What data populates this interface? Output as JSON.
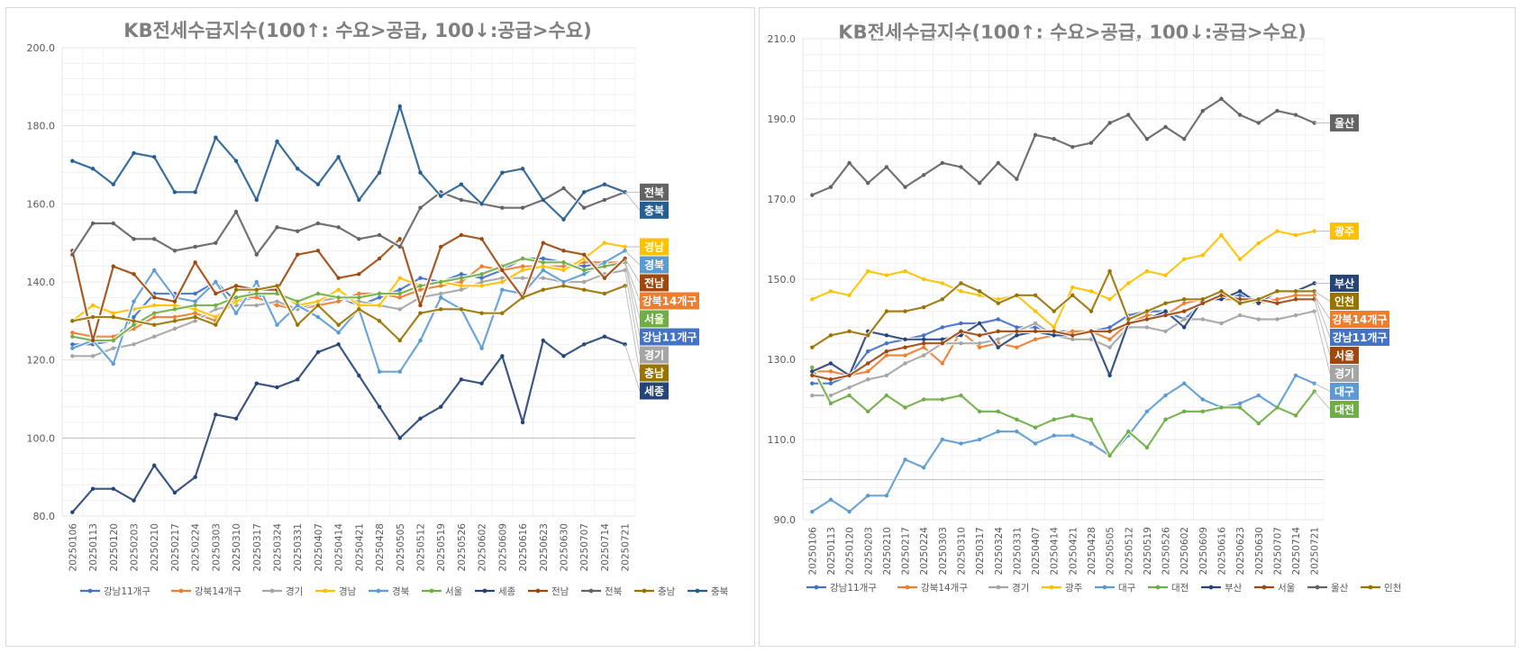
{
  "chart_data": [
    {
      "type": "line",
      "title": "KB전세수급지수(100↑: 수요>공급, 100↓:공급>수요)",
      "xlabel": "",
      "ylabel": "",
      "ylim": [
        80,
        200
      ],
      "yticks": [
        "80.0",
        "100.0",
        "120.0",
        "140.0",
        "160.0",
        "180.0",
        "200.0"
      ],
      "grid": true,
      "legend_position": "bottom",
      "x": [
        "20250106",
        "20250113",
        "20250120",
        "20250203",
        "20250210",
        "20250217",
        "20250224",
        "20250303",
        "20250310",
        "20250317",
        "20250324",
        "20250331",
        "20250407",
        "20250414",
        "20250421",
        "20250428",
        "20250505",
        "20250512",
        "20250519",
        "20250526",
        "20250602",
        "20250609",
        "20250616",
        "20250623",
        "20250630",
        "20250707",
        "20250714",
        "20250721"
      ],
      "series": [
        {
          "name": "강남11개구",
          "color": "#4472c4",
          "values": [
            124,
            124,
            125,
            131,
            137,
            137,
            137,
            140,
            135,
            136,
            138,
            134,
            134,
            136,
            134,
            136,
            138,
            141,
            140,
            142,
            141,
            143,
            146,
            146,
            145,
            144,
            145,
            145
          ]
        },
        {
          "name": "강북14개구",
          "color": "#ed7d31",
          "values": [
            127,
            126,
            126,
            128,
            131,
            131,
            132,
            130,
            136,
            136,
            134,
            133,
            134,
            135,
            137,
            137,
            136,
            138,
            139,
            140,
            144,
            143,
            144,
            144,
            144,
            145,
            145,
            145
          ]
        },
        {
          "name": "경기",
          "color": "#a5a5a5",
          "values": [
            121,
            121,
            123,
            124,
            126,
            128,
            130,
            133,
            134,
            134,
            135,
            133,
            135,
            136,
            135,
            134,
            133,
            136,
            137,
            138,
            140,
            141,
            141,
            141,
            140,
            140,
            142,
            143
          ]
        },
        {
          "name": "경남",
          "color": "#ffc000",
          "values": [
            130,
            134,
            132,
            133,
            134,
            134,
            133,
            131,
            135,
            138,
            138,
            134,
            135,
            138,
            134,
            134,
            141,
            139,
            140,
            139,
            139,
            140,
            143,
            144,
            143,
            146,
            150,
            149
          ]
        },
        {
          "name": "경북",
          "color": "#5b9bd5",
          "values": [
            123,
            125,
            119,
            135,
            143,
            136,
            135,
            140,
            132,
            140,
            129,
            134,
            131,
            127,
            133,
            117,
            117,
            125,
            136,
            133,
            123,
            138,
            137,
            143,
            140,
            142,
            145,
            148
          ]
        },
        {
          "name": "서울",
          "color": "#70ad47",
          "values": [
            126,
            125,
            125,
            129,
            132,
            133,
            134,
            134,
            136,
            137,
            137,
            135,
            137,
            136,
            136,
            137,
            137,
            139,
            140,
            141,
            142,
            144,
            146,
            145,
            145,
            143,
            144,
            145
          ]
        },
        {
          "name": "세종",
          "color": "#264478",
          "values": [
            81,
            87,
            87,
            84,
            93,
            86,
            90,
            106,
            105,
            114,
            113,
            115,
            122,
            124,
            116,
            108,
            100,
            105,
            108,
            115,
            114,
            121,
            104,
            125,
            121,
            124,
            126,
            124
          ]
        },
        {
          "name": "전남",
          "color": "#9e480e",
          "values": [
            148,
            125,
            144,
            142,
            136,
            135,
            145,
            137,
            139,
            138,
            138,
            147,
            148,
            141,
            142,
            146,
            151,
            134,
            149,
            152,
            151,
            143,
            136,
            150,
            148,
            147,
            141,
            146
          ]
        },
        {
          "name": "전북",
          "color": "#636363",
          "values": [
            147,
            155,
            155,
            151,
            151,
            148,
            149,
            150,
            158,
            147,
            154,
            153,
            155,
            154,
            151,
            152,
            149,
            159,
            163,
            161,
            160,
            159,
            159,
            161,
            164,
            159,
            161,
            163
          ]
        },
        {
          "name": "충남",
          "color": "#997300",
          "values": [
            130,
            131,
            131,
            130,
            129,
            130,
            131,
            129,
            138,
            138,
            139,
            129,
            134,
            129,
            133,
            130,
            125,
            132,
            133,
            133,
            132,
            132,
            136,
            138,
            139,
            138,
            137,
            139
          ]
        },
        {
          "name": "충북",
          "color": "#255e91",
          "values": [
            171,
            169,
            165,
            173,
            172,
            163,
            163,
            177,
            171,
            161,
            176,
            169,
            165,
            172,
            161,
            168,
            185,
            168,
            162,
            165,
            160,
            168,
            169,
            161,
            156,
            163,
            165,
            163
          ]
        }
      ],
      "labels": [
        "전북",
        "충북",
        "경남",
        "경북",
        "강북14개구",
        "서울",
        "강남11개구",
        "전남",
        "경기",
        "충남",
        "세종"
      ]
    },
    {
      "type": "line",
      "title": "KB전세수급지수(100↑: 수요>공급, 100↓:공급>수요)",
      "xlabel": "",
      "ylabel": "",
      "ylim": [
        90,
        210
      ],
      "yticks": [
        "90.0",
        "110.0",
        "130.0",
        "150.0",
        "170.0",
        "190.0",
        "210.0"
      ],
      "grid": true,
      "legend_position": "bottom",
      "x": [
        "20250106",
        "20250113",
        "20250120",
        "20250203",
        "20250210",
        "20250217",
        "20250224",
        "20250303",
        "20250310",
        "20250317",
        "20250324",
        "20250331",
        "20250407",
        "20250414",
        "20250421",
        "20250428",
        "20250505",
        "20250512",
        "20250519",
        "20250526",
        "20250602",
        "20250609",
        "20250616",
        "20250623",
        "20250630",
        "20250707",
        "20250714",
        "20250721"
      ],
      "series": [
        {
          "name": "강남11개구",
          "color": "#4472c4",
          "values": [
            124,
            124,
            126,
            132,
            134,
            135,
            136,
            138,
            139,
            139,
            140,
            138,
            138,
            137,
            137,
            137,
            138,
            141,
            142,
            142,
            140,
            144,
            146,
            146,
            145,
            145,
            146,
            146
          ]
        },
        {
          "name": "강북14개구",
          "color": "#ed7d31",
          "values": [
            127,
            127,
            126,
            127,
            131,
            131,
            133,
            129,
            137,
            133,
            134,
            133,
            135,
            136,
            137,
            137,
            135,
            139,
            141,
            141,
            144,
            145,
            145,
            145,
            144,
            145,
            146,
            146
          ]
        },
        {
          "name": "경기",
          "color": "#a5a5a5",
          "values": [
            121,
            121,
            123,
            125,
            126,
            129,
            131,
            134,
            134,
            134,
            135,
            137,
            139,
            136,
            135,
            135,
            133,
            138,
            138,
            137,
            140,
            140,
            139,
            141,
            140,
            140,
            141,
            142
          ]
        },
        {
          "name": "광주",
          "color": "#ffc000",
          "values": [
            145,
            147,
            146,
            152,
            151,
            152,
            150,
            149,
            147,
            146,
            145,
            146,
            142,
            138,
            148,
            147,
            145,
            149,
            152,
            151,
            155,
            156,
            161,
            155,
            159,
            162,
            161,
            162
          ]
        },
        {
          "name": "대구",
          "color": "#5b9bd5",
          "values": [
            92,
            95,
            92,
            96,
            96,
            105,
            103,
            110,
            109,
            110,
            112,
            112,
            109,
            111,
            111,
            109,
            106,
            111,
            117,
            121,
            124,
            120,
            118,
            119,
            121,
            118,
            126,
            124
          ]
        },
        {
          "name": "대전",
          "color": "#70ad47",
          "values": [
            128,
            119,
            121,
            117,
            121,
            118,
            120,
            120,
            121,
            117,
            117,
            115,
            113,
            115,
            116,
            115,
            106,
            112,
            108,
            115,
            117,
            117,
            118,
            118,
            114,
            118,
            116,
            122
          ]
        },
        {
          "name": "부산",
          "color": "#264478",
          "values": [
            127,
            129,
            126,
            137,
            136,
            135,
            135,
            135,
            136,
            139,
            133,
            136,
            137,
            136,
            136,
            137,
            126,
            139,
            140,
            142,
            138,
            145,
            145,
            147,
            144,
            147,
            147,
            149
          ]
        },
        {
          "name": "서울",
          "color": "#9e480e",
          "values": [
            126,
            125,
            126,
            129,
            132,
            133,
            134,
            134,
            137,
            136,
            137,
            137,
            137,
            137,
            136,
            137,
            137,
            139,
            140,
            141,
            142,
            144,
            146,
            145,
            145,
            144,
            145,
            145
          ]
        },
        {
          "name": "울산",
          "color": "#636363",
          "values": [
            171,
            173,
            179,
            174,
            178,
            173,
            176,
            179,
            178,
            174,
            179,
            175,
            186,
            185,
            183,
            184,
            189,
            191,
            185,
            188,
            185,
            192,
            195,
            191,
            189,
            192,
            191,
            189
          ]
        },
        {
          "name": "인천",
          "color": "#997300",
          "values": [
            133,
            136,
            137,
            136,
            142,
            142,
            143,
            145,
            149,
            147,
            144,
            146,
            146,
            142,
            146,
            142,
            152,
            140,
            142,
            144,
            145,
            145,
            147,
            144,
            145,
            147,
            147,
            147
          ]
        }
      ],
      "labels": [
        "울산",
        "광주",
        "부산",
        "인천",
        "강북14개구",
        "서울",
        "강남11개구",
        "경기",
        "대구",
        "대전"
      ]
    }
  ]
}
